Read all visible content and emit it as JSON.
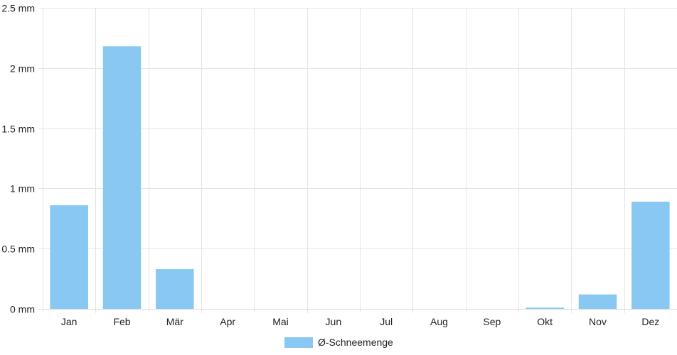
{
  "chart_data": {
    "type": "bar",
    "categories": [
      "Jan",
      "Feb",
      "Mär",
      "Apr",
      "Mai",
      "Jun",
      "Jul",
      "Aug",
      "Sep",
      "Okt",
      "Nov",
      "Dez"
    ],
    "series": [
      {
        "name": "Ø-Schneemenge",
        "values": [
          0.86,
          2.18,
          0.33,
          0,
          0,
          0,
          0,
          0,
          0,
          0.01,
          0.12,
          0.89
        ],
        "color": "#88c8f3"
      }
    ],
    "ylim": [
      0,
      2.5
    ],
    "yticks": [
      0,
      0.5,
      1,
      1.5,
      2,
      2.5
    ],
    "ytick_labels": [
      "0 mm",
      "0.5 mm",
      "1 mm",
      "1.5 mm",
      "2 mm",
      "2.5 mm"
    ],
    "grid": true,
    "legend_position": "bottom"
  }
}
